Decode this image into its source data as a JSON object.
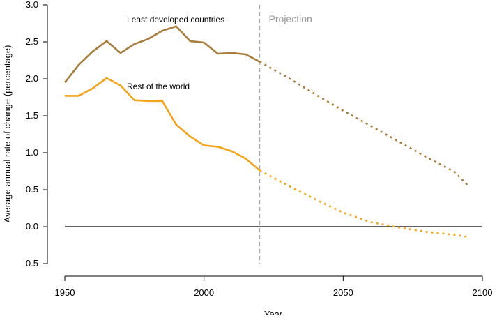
{
  "chart_data": {
    "type": "line",
    "xlabel": "Year",
    "ylabel": "Average annual rate of change (percentage)",
    "xlim": [
      1950,
      2100
    ],
    "ylim": [
      -0.5,
      3.0
    ],
    "x_ticks": [
      1950,
      2000,
      2050,
      2100
    ],
    "y_ticks": [
      "-0.5",
      "0.0",
      "0.5",
      "1.0",
      "1.5",
      "2.0",
      "2.5",
      "3.0"
    ],
    "grid": false,
    "reference_line_y": 0,
    "projection_start_year": 2020,
    "projection_label": "Projection",
    "series": [
      {
        "name": "Least developed countries",
        "color": "#a87d3c",
        "estimates": {
          "x": [
            1950,
            1955,
            1960,
            1965,
            1970,
            1975,
            1980,
            1985,
            1990,
            1995,
            2000,
            2005,
            2010,
            2015,
            2020
          ],
          "y": [
            1.95,
            2.19,
            2.37,
            2.51,
            2.35,
            2.47,
            2.54,
            2.65,
            2.71,
            2.51,
            2.49,
            2.34,
            2.35,
            2.33,
            2.23
          ]
        },
        "projection": {
          "x": [
            2020,
            2030,
            2040,
            2050,
            2060,
            2070,
            2080,
            2090,
            2095
          ],
          "y": [
            2.23,
            2.02,
            1.79,
            1.57,
            1.36,
            1.15,
            0.94,
            0.74,
            0.55
          ]
        }
      },
      {
        "name": "Rest of the world",
        "color": "#f5a31a",
        "estimates": {
          "x": [
            1950,
            1955,
            1960,
            1965,
            1970,
            1975,
            1980,
            1985,
            1990,
            1995,
            2000,
            2005,
            2010,
            2015,
            2020
          ],
          "y": [
            1.77,
            1.77,
            1.87,
            2.01,
            1.91,
            1.71,
            1.7,
            1.7,
            1.38,
            1.22,
            1.1,
            1.08,
            1.02,
            0.92,
            0.76
          ]
        },
        "projection": {
          "x": [
            2020,
            2030,
            2040,
            2050,
            2060,
            2070,
            2080,
            2090,
            2095
          ],
          "y": [
            0.76,
            0.56,
            0.37,
            0.19,
            0.06,
            -0.01,
            -0.07,
            -0.11,
            -0.14
          ]
        }
      }
    ]
  }
}
